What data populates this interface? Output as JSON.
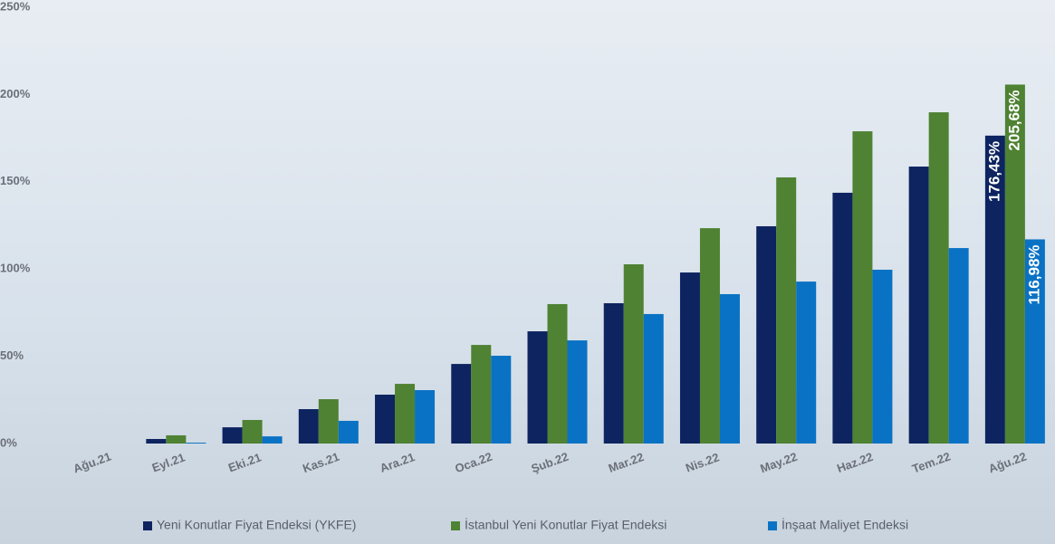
{
  "chart_data": {
    "type": "bar",
    "categories": [
      "Ağu.21",
      "Eyl.21",
      "Eki.21",
      "Kas.21",
      "Ara.21",
      "Oca.22",
      "Şub.22",
      "Mar.22",
      "Nis.22",
      "May.22",
      "Haz.22",
      "Tem.22",
      "Ağu.22"
    ],
    "series": [
      {
        "name": "Yeni Konutlar Fiyat Endeksi (YKFE)",
        "color": "#0d2460",
        "values": [
          0,
          2.6,
          9.3,
          19.7,
          28,
          45.6,
          64.3,
          80.4,
          98,
          124.5,
          143.7,
          158.7,
          176.43
        ],
        "value_labels": [
          null,
          null,
          null,
          null,
          null,
          null,
          null,
          null,
          null,
          null,
          null,
          null,
          "176,43%"
        ]
      },
      {
        "name": "İstanbul Yeni Konutlar Fiyat Endeksi",
        "color": "#4f8233",
        "values": [
          0,
          4.7,
          13.5,
          25.4,
          34.2,
          56.5,
          79.9,
          102.7,
          123.4,
          152.5,
          178.9,
          189.8,
          205.68
        ],
        "value_labels": [
          null,
          null,
          null,
          null,
          null,
          null,
          null,
          null,
          null,
          null,
          null,
          null,
          "205,68%"
        ]
      },
      {
        "name": "İnşaat Maliyet Endeksi",
        "color": "#0a72c4",
        "values": [
          0,
          0.5,
          4.1,
          13,
          30.6,
          50.3,
          59.1,
          74.2,
          85.6,
          92.8,
          99.6,
          112,
          116.98
        ],
        "value_labels": [
          null,
          null,
          null,
          null,
          null,
          null,
          null,
          null,
          null,
          null,
          null,
          null,
          "116,98%"
        ]
      }
    ],
    "ylim": [
      0,
      250
    ],
    "yticks": [
      {
        "value": 0,
        "label": "0%"
      },
      {
        "value": 50,
        "label": "50%"
      },
      {
        "value": 100,
        "label": "100%"
      },
      {
        "value": 150,
        "label": "150%"
      },
      {
        "value": 200,
        "label": "200%"
      },
      {
        "value": 250,
        "label": "250%"
      }
    ],
    "grid": false,
    "legend": "bottom"
  }
}
